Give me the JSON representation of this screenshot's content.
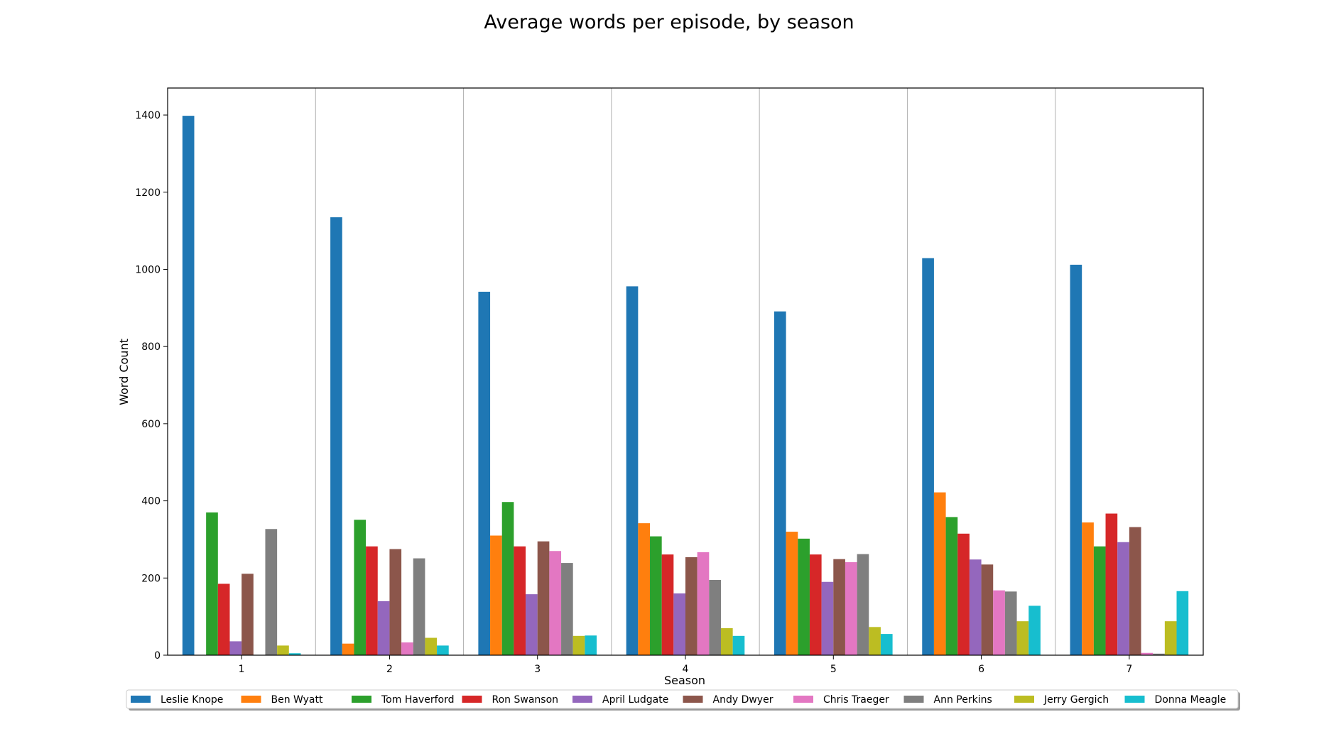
{
  "chart_data": {
    "type": "bar",
    "title": "Average words per episode, by season",
    "xlabel": "Season",
    "ylabel": "Word Count",
    "categories": [
      "1",
      "2",
      "3",
      "4",
      "5",
      "6",
      "7"
    ],
    "ylim": [
      0,
      1470
    ],
    "yticks": [
      0,
      200,
      400,
      600,
      800,
      1000,
      1200,
      1400
    ],
    "grid": "vertical",
    "legend_position": "bottom",
    "series": [
      {
        "name": "Leslie Knope",
        "color": "#1f77b4",
        "values": [
          1398,
          1135,
          942,
          956,
          891,
          1029,
          1012
        ]
      },
      {
        "name": "Ben Wyatt",
        "color": "#ff7f0e",
        "values": [
          0,
          30,
          310,
          342,
          320,
          422,
          344
        ]
      },
      {
        "name": "Tom Haverford",
        "color": "#2ca02c",
        "values": [
          370,
          351,
          397,
          308,
          302,
          358,
          282
        ]
      },
      {
        "name": "Ron Swanson",
        "color": "#d62728",
        "values": [
          185,
          282,
          282,
          261,
          261,
          315,
          367
        ]
      },
      {
        "name": "April Ludgate",
        "color": "#9467bd",
        "values": [
          36,
          140,
          158,
          160,
          190,
          248,
          293
        ]
      },
      {
        "name": "Andy Dwyer",
        "color": "#8c564b",
        "values": [
          211,
          275,
          295,
          254,
          249,
          235,
          332
        ]
      },
      {
        "name": "Chris Traeger",
        "color": "#e377c2",
        "values": [
          0,
          33,
          270,
          267,
          241,
          168,
          6
        ]
      },
      {
        "name": "Ann Perkins",
        "color": "#7f7f7f",
        "values": [
          327,
          251,
          239,
          195,
          262,
          165,
          4
        ]
      },
      {
        "name": "Jerry Gergich",
        "color": "#bcbd22",
        "values": [
          25,
          45,
          50,
          70,
          73,
          88,
          88
        ]
      },
      {
        "name": "Donna Meagle",
        "color": "#17becf",
        "values": [
          5,
          25,
          51,
          50,
          55,
          128,
          166
        ]
      }
    ]
  }
}
